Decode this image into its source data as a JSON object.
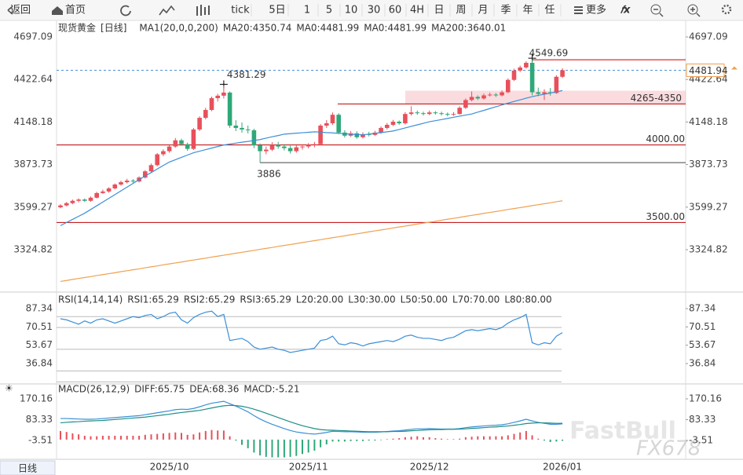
{
  "toolbar": {
    "back": "返回",
    "home": "首页",
    "periods": [
      "tick",
      "5日",
      "1",
      "5",
      "10",
      "30",
      "60",
      "4H",
      "日",
      "周",
      "月",
      "季",
      "年",
      "任"
    ],
    "more": "更多"
  },
  "tab": "日线",
  "watermark": [
    "FastBull",
    "FX678"
  ],
  "chart_data": [
    {
      "type": "candlestick",
      "title": "现货黄金",
      "period": "[日线]",
      "indicator": "MA1(20,0,0,200)",
      "legend": [
        {
          "label": "MA20:4350.74",
          "color": "#3b8fd8"
        },
        {
          "label": "MA0:4481.99",
          "color": "#17a89e"
        },
        {
          "label": "MA0:4481.99",
          "color": "#4a9fd8"
        },
        {
          "label": "MA200:3640.01",
          "color": "#f0a050"
        }
      ],
      "up_color": "#e8505b",
      "down_color": "#2fa878",
      "categories": [
        null,
        null,
        null,
        null,
        null,
        null,
        null,
        null,
        null,
        null,
        null,
        null,
        null,
        null,
        null,
        null,
        null,
        null,
        "2025/10",
        null,
        null,
        null,
        null,
        null,
        null,
        null,
        null,
        null,
        null,
        null,
        null,
        null,
        null,
        null,
        null,
        null,
        null,
        null,
        null,
        null,
        null,
        "2025/11",
        null,
        null,
        null,
        null,
        null,
        null,
        null,
        null,
        null,
        null,
        null,
        null,
        null,
        null,
        null,
        null,
        null,
        null,
        null,
        "2025/12",
        null,
        null,
        null,
        null,
        null,
        null,
        null,
        null,
        null,
        null,
        null,
        null,
        null,
        null,
        null,
        null,
        null,
        null,
        null,
        null,
        null,
        "2026/01"
      ],
      "ohlc": [
        [
          3598,
          3618,
          3592,
          3610
        ],
        [
          3610,
          3632,
          3604,
          3625
        ],
        [
          3625,
          3648,
          3618,
          3640
        ],
        [
          3640,
          3656,
          3630,
          3648
        ],
        [
          3648,
          3655,
          3632,
          3640
        ],
        [
          3640,
          3668,
          3634,
          3660
        ],
        [
          3660,
          3698,
          3655,
          3690
        ],
        [
          3690,
          3712,
          3684,
          3700
        ],
        [
          3700,
          3728,
          3692,
          3720
        ],
        [
          3720,
          3752,
          3714,
          3745
        ],
        [
          3745,
          3770,
          3738,
          3760
        ],
        [
          3760,
          3782,
          3752,
          3770
        ],
        [
          3770,
          3780,
          3755,
          3765
        ],
        [
          3765,
          3798,
          3758,
          3790
        ],
        [
          3790,
          3838,
          3784,
          3830
        ],
        [
          3830,
          3880,
          3822,
          3870
        ],
        [
          3870,
          3948,
          3862,
          3940
        ],
        [
          3940,
          3972,
          3928,
          3960
        ],
        [
          3960,
          3998,
          3950,
          3990
        ],
        [
          3990,
          4045,
          3982,
          4030
        ],
        [
          4030,
          4040,
          3995,
          4005
        ],
        [
          4005,
          4015,
          3962,
          3975
        ],
        [
          3975,
          4110,
          3968,
          4100
        ],
        [
          4100,
          4185,
          4090,
          4175
        ],
        [
          4175,
          4240,
          4165,
          4226
        ],
        [
          4226,
          4312,
          4218,
          4302
        ],
        [
          4302,
          4330,
          4280,
          4318
        ],
        [
          4318,
          4381.29,
          4300,
          4338
        ],
        [
          4338,
          4345,
          4110,
          4125
        ],
        [
          4125,
          4160,
          4090,
          4110
        ],
        [
          4110,
          4145,
          4080,
          4100
        ],
        [
          4100,
          4125,
          4075,
          4095
        ],
        [
          4095,
          4105,
          3980,
          3998
        ],
        [
          3998,
          4010,
          3886,
          3960
        ],
        [
          3960,
          3990,
          3940,
          3970
        ],
        [
          3970,
          4018,
          3960,
          4000
        ],
        [
          4000,
          4020,
          3975,
          3990
        ],
        [
          3990,
          4005,
          3965,
          3980
        ],
        [
          3980,
          3995,
          3945,
          3960
        ],
        [
          3960,
          3998,
          3950,
          3985
        ],
        [
          3985,
          4005,
          3970,
          3990
        ],
        [
          3990,
          4012,
          3978,
          4000
        ],
        [
          4000,
          4020,
          3985,
          4005
        ],
        [
          4005,
          4135,
          3998,
          4125
        ],
        [
          4125,
          4160,
          4110,
          4140
        ],
        [
          4140,
          4210,
          4130,
          4195
        ],
        [
          4195,
          4205,
          4070,
          4080
        ],
        [
          4080,
          4095,
          4048,
          4060
        ],
        [
          4060,
          4090,
          4052,
          4075
        ],
        [
          4075,
          4088,
          4040,
          4050
        ],
        [
          4050,
          4082,
          4042,
          4070
        ],
        [
          4070,
          4085,
          4055,
          4065
        ],
        [
          4065,
          4092,
          4058,
          4080
        ],
        [
          4080,
          4120,
          4072,
          4110
        ],
        [
          4110,
          4142,
          4100,
          4130
        ],
        [
          4130,
          4162,
          4122,
          4150
        ],
        [
          4150,
          4158,
          4130,
          4140
        ],
        [
          4140,
          4212,
          4132,
          4200
        ],
        [
          4200,
          4250,
          4190,
          4210
        ],
        [
          4210,
          4222,
          4195,
          4205
        ],
        [
          4205,
          4215,
          4190,
          4200
        ],
        [
          4200,
          4222,
          4192,
          4210
        ],
        [
          4210,
          4218,
          4196,
          4205
        ],
        [
          4205,
          4215,
          4190,
          4200
        ],
        [
          4200,
          4210,
          4185,
          4195
        ],
        [
          4195,
          4212,
          4188,
          4200
        ],
        [
          4200,
          4250,
          4195,
          4240
        ],
        [
          4240,
          4300,
          4232,
          4290
        ],
        [
          4290,
          4345,
          4282,
          4310
        ],
        [
          4310,
          4320,
          4290,
          4300
        ],
        [
          4300,
          4332,
          4292,
          4320
        ],
        [
          4320,
          4338,
          4312,
          4325
        ],
        [
          4325,
          4335,
          4310,
          4320
        ],
        [
          4320,
          4352,
          4314,
          4340
        ],
        [
          4340,
          4430,
          4335,
          4420
        ],
        [
          4420,
          4492,
          4412,
          4480
        ],
        [
          4480,
          4512,
          4470,
          4500
        ],
        [
          4500,
          4540,
          4492,
          4530
        ],
        [
          4530,
          4549.69,
          4320,
          4340
        ],
        [
          4340,
          4370,
          4315,
          4330
        ],
        [
          4330,
          4360,
          4290,
          4340
        ],
        [
          4340,
          4368,
          4318,
          4335
        ],
        [
          4335,
          4450,
          4330,
          4440
        ],
        [
          4440,
          4495,
          4432,
          4482
        ]
      ],
      "lines": [
        {
          "color": "#3b8fd8",
          "values": [
            3480,
            3500,
            3520,
            3540,
            3560,
            3584,
            3608,
            3632,
            3656,
            3680,
            3704,
            3728,
            3752,
            3776,
            3800,
            3822,
            3845,
            3868,
            3890,
            3905,
            3920,
            3935,
            3950,
            3960,
            3970,
            3980,
            3990,
            4000,
            4006,
            4012,
            4018,
            4023,
            4029,
            4035,
            4044,
            4053,
            4061,
            4070,
            4073,
            4076,
            4079,
            4082,
            4085,
            4083,
            4080,
            4078,
            4075,
            4073,
            4070,
            4068,
            4065,
            4070,
            4075,
            4080,
            4085,
            4090,
            4100,
            4110,
            4120,
            4130,
            4140,
            4150,
            4157,
            4164,
            4171,
            4179,
            4186,
            4193,
            4200,
            4212,
            4223,
            4235,
            4247,
            4258,
            4270,
            4281,
            4291,
            4302,
            4312,
            4320,
            4327,
            4335,
            4343,
            4350.74
          ]
        },
        {
          "color": "#f0a050",
          "values": [
            3120,
            3126,
            3133,
            3139,
            3145,
            3151,
            3158,
            3164,
            3170,
            3176,
            3183,
            3189,
            3195,
            3201,
            3208,
            3214,
            3220,
            3227,
            3233,
            3239,
            3245,
            3252,
            3258,
            3264,
            3270,
            3277,
            3283,
            3289,
            3295,
            3302,
            3308,
            3314,
            3320,
            3327,
            3333,
            3339,
            3346,
            3352,
            3358,
            3364,
            3371,
            3377,
            3383,
            3389,
            3396,
            3402,
            3408,
            3414,
            3421,
            3427,
            3433,
            3440,
            3446,
            3452,
            3458,
            3465,
            3471,
            3477,
            3483,
            3490,
            3496,
            3502,
            3508,
            3515,
            3521,
            3527,
            3533,
            3540,
            3546,
            3552,
            3559,
            3565,
            3571,
            3577,
            3584,
            3590,
            3596,
            3602,
            3609,
            3615,
            3621,
            3627,
            3634,
            3640.01
          ]
        }
      ],
      "levels": [
        {
          "value": 4000,
          "label": "4000.00"
        },
        {
          "value": 3500,
          "label": "3500.00"
        }
      ],
      "support": 3886,
      "peak": 4381.29,
      "high": 4549.69,
      "zone": {
        "low": 4265,
        "high": 4350,
        "label": "4265-4350"
      },
      "current": 4481.94,
      "ylim": [
        3071.6,
        4783.2
      ],
      "yticks": [
        4697.09,
        4422.64,
        4148.18,
        3873.73,
        3599.27,
        3324.82
      ]
    },
    {
      "type": "line",
      "title": "RSI(14,14,14)",
      "legend": [
        {
          "label": "RSI1:65.29",
          "color": "#3b8fd8"
        },
        {
          "label": "RSI2:65.29",
          "color": "#17a89e"
        },
        {
          "label": "RSI3:65.29",
          "color": "#4a9fd8"
        },
        {
          "label": "L20:20.00",
          "color": "#aaaaaa"
        },
        {
          "label": "L30:30.00",
          "color": "#aaaaaa"
        },
        {
          "label": "L50:50.00",
          "color": "#aaaaaa"
        },
        {
          "label": "L70:70.00",
          "color": "#aaaaaa"
        },
        {
          "label": "L80:80.00",
          "color": "#aaaaaa"
        }
      ],
      "guides": [
        80,
        70,
        50,
        30,
        20
      ],
      "color": "#3b8fd8",
      "values": [
        78,
        77,
        75,
        73,
        76,
        74,
        77,
        78,
        76,
        74,
        76,
        78,
        80,
        79,
        81,
        82,
        78,
        80,
        83,
        84,
        77,
        74,
        79,
        82,
        84,
        85,
        80,
        82,
        58,
        59,
        60,
        57,
        52,
        50,
        51,
        52,
        50,
        49,
        47,
        48,
        49,
        50,
        51,
        58,
        59,
        62,
        55,
        54,
        56,
        55,
        53,
        55,
        56,
        57,
        58,
        57,
        59,
        62,
        63,
        61,
        60,
        60,
        59,
        58,
        60,
        61,
        64,
        67,
        68,
        67,
        68,
        69,
        68,
        70,
        74,
        77,
        79,
        82,
        56,
        54,
        56,
        55,
        62,
        65.29
      ],
      "ylim": [
        20,
        98.2
      ],
      "yticks": [
        87.34,
        70.51,
        53.67,
        36.84
      ]
    },
    {
      "type": "macd",
      "title": "MACD(26,12,9)",
      "legend": [
        {
          "label": "DIFF:65.75",
          "color": "#3b8fd8"
        },
        {
          "label": "DEA:68.36",
          "color": "#17a89e"
        },
        {
          "label": "MACD:-5.21",
          "color": "#4a9fd8"
        }
      ],
      "up_color": "#e8505b",
      "down_color": "#2fa878",
      "series": [
        {
          "name": "DIFF",
          "color": "#3b8fd8",
          "values": [
            88,
            88,
            87,
            86,
            85,
            85,
            86,
            88,
            90,
            92,
            94,
            96,
            98,
            100,
            104,
            108,
            112,
            116,
            120,
            125,
            127,
            126,
            130,
            137,
            145,
            152,
            156,
            160,
            150,
            140,
            128,
            116,
            100,
            86,
            74,
            64,
            55,
            46,
            38,
            32,
            28,
            25,
            23,
            26,
            30,
            35,
            34,
            33,
            33,
            32,
            31,
            31,
            31,
            32,
            34,
            36,
            37,
            40,
            43,
            45,
            45,
            46,
            45,
            44,
            44,
            44,
            46,
            50,
            53,
            55,
            57,
            59,
            60,
            62,
            66,
            72,
            78,
            85,
            78,
            72,
            68,
            64,
            64,
            65.75
          ]
        },
        {
          "name": "DEA",
          "color": "#1e8f84",
          "values": [
            70,
            72,
            74,
            75,
            77,
            78,
            79,
            80,
            82,
            84,
            86,
            88,
            90,
            92,
            94,
            97,
            100,
            103,
            106,
            110,
            113,
            116,
            119,
            122,
            127,
            132,
            137,
            141,
            143,
            142,
            139,
            134,
            127,
            119,
            110,
            101,
            92,
            83,
            74,
            66,
            58,
            52,
            46,
            42,
            40,
            39,
            38,
            37,
            36,
            35,
            34,
            33,
            33,
            33,
            33,
            34,
            34,
            35,
            37,
            38,
            40,
            41,
            42,
            42,
            43,
            43,
            44,
            45,
            47,
            48,
            50,
            52,
            53,
            55,
            57,
            60,
            63,
            67,
            69,
            70,
            70,
            69,
            68,
            68.36
          ]
        }
      ],
      "histogram": [
        36,
        32,
        26,
        22,
        16,
        14,
        14,
        16,
        16,
        16,
        16,
        16,
        16,
        16,
        20,
        22,
        24,
        26,
        28,
        30,
        28,
        20,
        22,
        30,
        36,
        40,
        38,
        38,
        14,
        -4,
        -22,
        -36,
        -54,
        -66,
        -72,
        -74,
        -74,
        -74,
        -72,
        -68,
        -60,
        -54,
        -46,
        -32,
        -20,
        -8,
        -8,
        -8,
        -6,
        -6,
        -6,
        -4,
        -4,
        -2,
        2,
        4,
        6,
        10,
        12,
        14,
        10,
        10,
        6,
        4,
        2,
        2,
        4,
        10,
        12,
        14,
        14,
        14,
        14,
        14,
        18,
        24,
        30,
        36,
        18,
        4,
        -4,
        -10,
        -8,
        -5.21
      ],
      "ylim": [
        -75.6,
        222.6
      ],
      "yticks": [
        170.16,
        83.33,
        -3.51
      ]
    }
  ]
}
